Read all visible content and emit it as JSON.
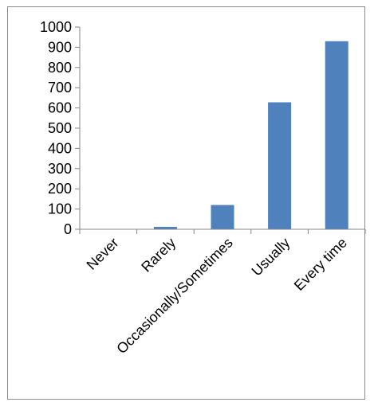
{
  "chart_data": {
    "type": "bar",
    "categories": [
      "Never",
      "Rarely",
      "Occasionally/Sometimes",
      "Usually",
      "Every time"
    ],
    "values": [
      0,
      12,
      120,
      628,
      930
    ],
    "ylim": [
      0,
      1000
    ],
    "yticks": [
      0,
      100,
      200,
      300,
      400,
      500,
      600,
      700,
      800,
      900,
      1000
    ],
    "grid": false,
    "legend": "none",
    "bar_color": "#4f81bd",
    "axis_color": "#868686"
  }
}
